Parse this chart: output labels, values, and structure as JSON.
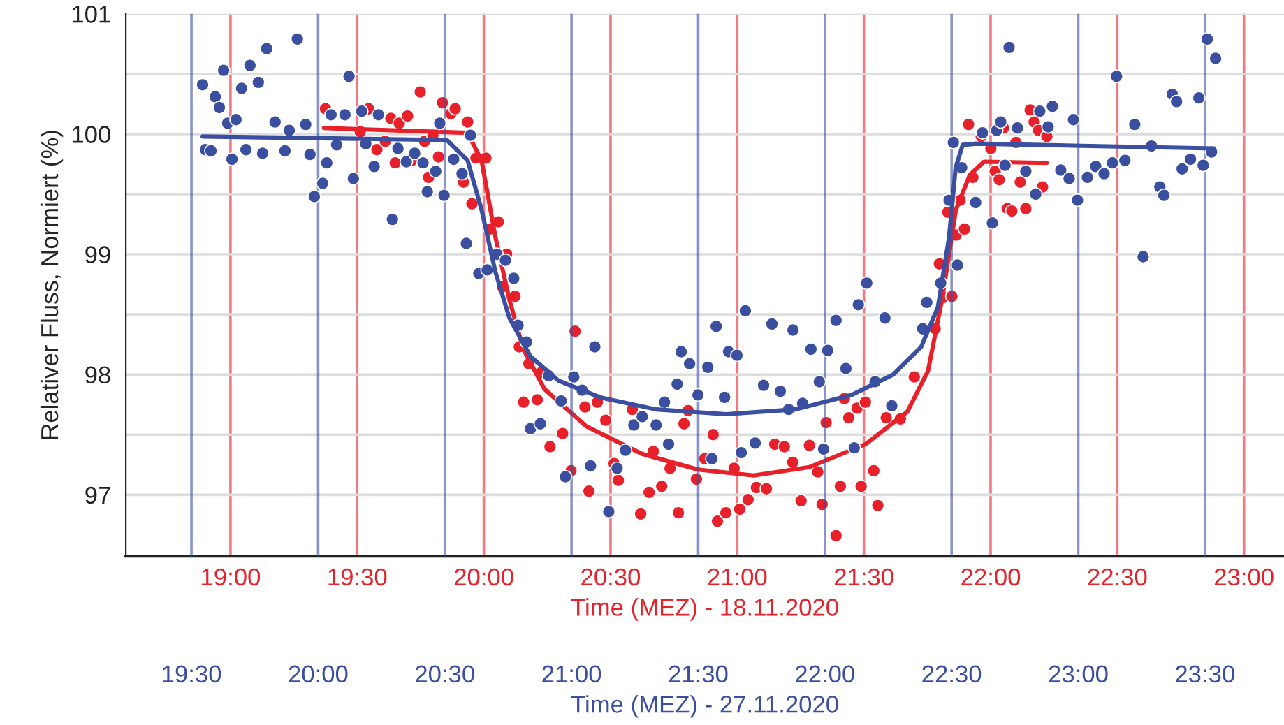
{
  "chart_data": {
    "type": "scatter",
    "ylabel": "Relativer Fluss, Normiert (%)",
    "xlabel": "Time (MEZ) - 18.11.2020",
    "x2label": "Time (MEZ) - 27.11.2020",
    "xlim": [
      18.587,
      23.158
    ],
    "xticks": [
      {
        "value": 19,
        "label": "19:00"
      },
      {
        "value": 19.5,
        "label": "19:30"
      },
      {
        "value": 20,
        "label": "20:00"
      },
      {
        "value": 20.5,
        "label": "20:30"
      },
      {
        "value": 21,
        "label": "21:00"
      },
      {
        "value": 21.5,
        "label": "21:30"
      },
      {
        "value": 22,
        "label": "22:00"
      },
      {
        "value": 22.5,
        "label": "22:30"
      },
      {
        "value": 23,
        "label": "23:00"
      }
    ],
    "x2lim": [
      19.241,
      23.812
    ],
    "x2ticks": [
      {
        "value": 19.5,
        "label": "19:30"
      },
      {
        "value": 20,
        "label": "20:00"
      },
      {
        "value": 20.5,
        "label": "20:30"
      },
      {
        "value": 21,
        "label": "21:00"
      },
      {
        "value": 21.5,
        "label": "21:30"
      },
      {
        "value": 22,
        "label": "22:00"
      },
      {
        "value": 22.5,
        "label": "22:30"
      },
      {
        "value": 23,
        "label": "23:00"
      },
      {
        "value": 23.5,
        "label": "23:30"
      }
    ],
    "ylim": [
      96.49,
      101
    ],
    "yticks": [
      97,
      {
        "value": 97.5,
        "label": null
      },
      98,
      {
        "value": 98.5,
        "label": null
      },
      99,
      {
        "value": 99.5,
        "label": null
      },
      100,
      {
        "value": 100.5,
        "label": null
      },
      101
    ],
    "grid": true,
    "legend": false,
    "series": [
      {
        "marker": "circle",
        "axis": "x2",
        "color": "#3a4fa0",
        "x": [
          19.544,
          19.594,
          19.61,
          19.627,
          19.643,
          19.676,
          19.698,
          19.731,
          19.764,
          19.797,
          19.83,
          19.886,
          19.918,
          19.951,
          19.555,
          19.577,
          19.66,
          19.715,
          19.781,
          19.869,
          19.968,
          19.985,
          20.018,
          20.034,
          20.051,
          20.073,
          20.106,
          20.122,
          20.139,
          20.172,
          20.188,
          20.221,
          20.238,
          20.293,
          20.315,
          20.348,
          20.381,
          20.414,
          20.431,
          20.464,
          20.48,
          20.497,
          20.535,
          20.568,
          20.585,
          20.601,
          20.634,
          20.667,
          20.706,
          20.739,
          20.772,
          20.789,
          20.822,
          20.838,
          20.877,
          20.91,
          20.959,
          20.976,
          21.009,
          21.042,
          21.075,
          21.092,
          21.147,
          21.18,
          21.213,
          21.246,
          21.279,
          21.334,
          21.367,
          21.383,
          21.417,
          21.433,
          21.466,
          21.499,
          21.538,
          21.554,
          21.571,
          21.604,
          21.62,
          21.653,
          21.67,
          21.686,
          21.725,
          21.758,
          21.791,
          21.824,
          21.857,
          21.874,
          21.912,
          21.945,
          21.978,
          21.995,
          22.011,
          22.044,
          22.083,
          22.116,
          22.132,
          22.165,
          22.198,
          22.237,
          22.264,
          22.386,
          22.402,
          22.457,
          22.49,
          22.523,
          22.507,
          22.54,
          22.595,
          22.622,
          22.661,
          22.678,
          22.694,
          22.711,
          22.727,
          22.76,
          22.793,
          22.832,
          22.848,
          22.881,
          22.898,
          22.931,
          22.964,
          22.981,
          22.997,
          23.036,
          23.069,
          23.102,
          23.135,
          23.151,
          23.184,
          23.223,
          23.256,
          23.289,
          23.322,
          23.338,
          23.371,
          23.388,
          23.41,
          23.443,
          23.476,
          23.493,
          23.509,
          23.526,
          23.542
        ],
        "values": [
          100.41,
          100.31,
          100.22,
          100.53,
          100.09,
          100.12,
          100.38,
          100.57,
          100.43,
          100.71,
          100.1,
          100.03,
          100.79,
          100.08,
          99.87,
          99.86,
          99.79,
          99.87,
          99.84,
          99.86,
          99.83,
          99.48,
          99.59,
          99.76,
          100.16,
          99.91,
          100.16,
          100.48,
          99.63,
          100.19,
          99.92,
          99.73,
          100.16,
          99.29,
          99.88,
          99.77,
          99.84,
          99.76,
          99.52,
          99.69,
          100.09,
          99.49,
          99.79,
          99.67,
          99.09,
          99.99,
          98.84,
          98.87,
          99.0,
          98.95,
          98.8,
          98.41,
          98.27,
          97.55,
          97.59,
          97.99,
          97.78,
          97.15,
          97.98,
          97.87,
          97.24,
          98.23,
          96.86,
          97.22,
          97.37,
          97.58,
          97.65,
          97.58,
          97.77,
          97.42,
          97.92,
          98.19,
          98.09,
          97.83,
          98.06,
          97.3,
          98.4,
          97.81,
          98.19,
          98.16,
          97.35,
          98.53,
          97.43,
          97.91,
          98.42,
          97.86,
          97.71,
          98.37,
          97.76,
          98.21,
          97.94,
          97.38,
          98.2,
          98.45,
          98.05,
          97.39,
          98.58,
          98.76,
          97.94,
          98.47,
          97.74,
          98.38,
          98.6,
          98.76,
          99.45,
          98.91,
          99.93,
          99.72,
          99.43,
          100.01,
          99.26,
          100.03,
          100.1,
          99.74,
          100.72,
          100.05,
          99.69,
          99.5,
          100.19,
          100.06,
          100.23,
          99.7,
          99.63,
          100.12,
          99.45,
          99.64,
          99.73,
          99.67,
          99.76,
          100.48,
          99.78,
          100.08,
          98.98,
          99.9,
          99.56,
          99.49,
          100.33,
          100.27,
          99.71,
          99.79,
          100.3,
          99.74,
          100.79,
          99.85,
          100.63
        ]
      },
      {
        "marker": "circle",
        "color": "#e8202a",
        "x": [
          19.375,
          19.512,
          19.545,
          19.578,
          19.611,
          19.633,
          19.65,
          19.666,
          19.699,
          19.716,
          19.749,
          19.766,
          19.782,
          19.799,
          19.821,
          19.837,
          19.87,
          19.887,
          19.92,
          19.936,
          19.953,
          19.969,
          20.008,
          20.024,
          20.057,
          20.09,
          20.074,
          20.123,
          20.14,
          20.178,
          20.157,
          20.211,
          20.228,
          20.261,
          20.311,
          20.344,
          20.36,
          20.399,
          20.415,
          20.448,
          20.481,
          20.514,
          20.531,
          20.586,
          20.619,
          20.652,
          20.669,
          20.702,
          20.735,
          20.768,
          20.79,
          20.806,
          20.839,
          20.872,
          20.905,
          20.922,
          20.955,
          20.988,
          21.01,
          21.043,
          21.076,
          21.115,
          21.148,
          21.186,
          21.219,
          21.252,
          21.285,
          21.318,
          21.335,
          21.351,
          21.39,
          21.407,
          21.423,
          21.44,
          21.473,
          21.489,
          21.506,
          21.539,
          21.555,
          21.588,
          21.644,
          21.699,
          21.781,
          21.798,
          21.814,
          21.831,
          21.847,
          21.864,
          21.88,
          21.897,
          21.913,
          21.93,
          21.963,
          22.001,
          22.018,
          22.034,
          22.051,
          22.067,
          22.084,
          22.1,
          22.117,
          22.139,
          22.156,
          22.172,
          22.189,
          22.205,
          22.222
        ],
        "values": [
          100.21,
          100.02,
          100.21,
          99.87,
          99.94,
          100.13,
          99.76,
          100.09,
          100.15,
          99.78,
          100.35,
          99.94,
          99.64,
          99.99,
          99.81,
          100.26,
          100.17,
          100.21,
          99.6,
          100.1,
          99.42,
          99.8,
          99.8,
          99.21,
          99.27,
          99.0,
          98.73,
          98.65,
          98.23,
          98.09,
          97.77,
          97.79,
          98.02,
          97.4,
          97.51,
          97.2,
          98.36,
          97.73,
          97.03,
          97.77,
          97.62,
          97.26,
          97.12,
          97.71,
          96.84,
          97.02,
          97.36,
          97.07,
          97.22,
          96.85,
          97.59,
          97.7,
          97.13,
          97.3,
          97.5,
          96.78,
          96.85,
          97.22,
          96.88,
          96.96,
          97.06,
          97.05,
          97.42,
          97.4,
          97.27,
          96.95,
          97.41,
          97.19,
          96.92,
          97.6,
          96.66,
          97.07,
          97.8,
          97.64,
          97.72,
          97.07,
          97.77,
          97.2,
          96.91,
          97.64,
          97.63,
          97.98,
          98.38,
          98.92,
          98.64,
          99.35,
          98.65,
          99.16,
          99.45,
          99.21,
          100.08,
          99.64,
          99.98,
          99.88,
          99.69,
          99.62,
          100.05,
          99.38,
          99.36,
          99.93,
          99.6,
          99.38,
          100.2,
          100.1,
          100.03,
          99.56,
          99.98
        ]
      },
      {
        "type": "line",
        "axis": "x2",
        "color": "#3a4fa0",
        "x": [
          19.544,
          20.508,
          20.59,
          20.645,
          20.7,
          20.755,
          20.838,
          20.948,
          21.113,
          21.334,
          21.609,
          21.884,
          22.105,
          22.27,
          22.38,
          22.446,
          22.49,
          22.516,
          22.544,
          22.599,
          23.536
        ],
        "values": [
          99.98,
          99.95,
          99.78,
          99.37,
          98.85,
          98.47,
          98.15,
          97.95,
          97.81,
          97.71,
          97.67,
          97.71,
          97.83,
          98.0,
          98.23,
          98.56,
          99.14,
          99.72,
          99.91,
          99.92,
          99.88
        ]
      },
      {
        "type": "line",
        "color": "#e8202a",
        "x": [
          19.369,
          19.936,
          19.991,
          20.046,
          20.101,
          20.156,
          20.239,
          20.404,
          20.624,
          20.845,
          21.065,
          21.285,
          21.506,
          21.671,
          21.753,
          21.808,
          21.863,
          21.918,
          21.974,
          22.221
        ],
        "values": [
          100.05,
          100.01,
          99.78,
          99.14,
          98.62,
          98.21,
          97.88,
          97.57,
          97.34,
          97.21,
          97.16,
          97.23,
          97.42,
          97.69,
          98.03,
          98.62,
          99.37,
          99.66,
          99.77,
          99.76
        ]
      }
    ]
  }
}
